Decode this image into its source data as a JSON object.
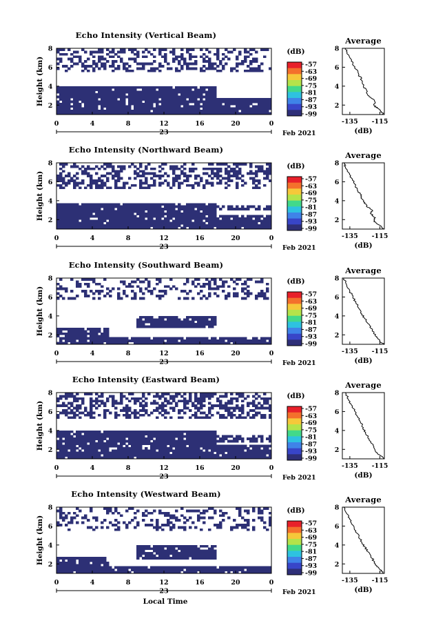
{
  "figure": {
    "x_label": "Local Time",
    "date_label": "Feb 2021",
    "day_label": "23",
    "colorbar_unit": "(dB)",
    "colorbar_ticks": [
      "-57",
      "-63",
      "-69",
      "-75",
      "-81",
      "-87",
      "-93",
      "-99"
    ],
    "colorbar_colors": [
      "#e8202a",
      "#f4702c",
      "#f6c83a",
      "#b4e34a",
      "#42d98a",
      "#2ec2e0",
      "#3f83e8",
      "#3845c8",
      "#2e2f78"
    ],
    "average_title": "Average",
    "average_xlabel": "(dB)",
    "data_color": "#2d3075",
    "panel_titles": [
      "Echo Intensity (Vertical Beam)",
      "Echo Intensity (Northward Beam)",
      "Echo Intensity (Southward Beam)",
      "Echo Intensity (Eastward Beam)",
      "Echo Intensity (Westward Beam)"
    ]
  },
  "chart_data": [
    {
      "type": "heatmap",
      "title": "Echo Intensity (Vertical Beam)",
      "ylabel": "Height (km)",
      "xlabel": "",
      "x_ticks": [
        "0",
        "4",
        "8",
        "12",
        "16",
        "20",
        "0"
      ],
      "y_ticks": [
        "2",
        "4",
        "6",
        "8"
      ],
      "xlim": [
        0,
        24
      ],
      "ylim": [
        1,
        8
      ],
      "colorbar": {
        "label": "(dB)",
        "min": -99,
        "max": -57
      },
      "echo_bands": [
        {
          "y": [
            1.0,
            1.7
          ],
          "x": [
            0,
            24
          ],
          "density": 0.97
        },
        {
          "y": [
            1.7,
            2.8
          ],
          "x": [
            0,
            24
          ],
          "density": 0.9
        },
        {
          "y": [
            2.8,
            3.3
          ],
          "x": [
            0,
            18
          ],
          "density": 0.95
        },
        {
          "y": [
            3.3,
            4.0
          ],
          "x": [
            0,
            18
          ],
          "density": 0.96
        },
        {
          "y": [
            5.5,
            8.0
          ],
          "x": [
            0,
            24
          ],
          "density": 0.38
        }
      ],
      "average_profile": {
        "title": "Average",
        "xlabel": "(dB)",
        "x_ticks": [
          "-135",
          "-115"
        ],
        "y_ticks": [
          "2",
          "4",
          "6",
          "8"
        ],
        "xlim": [
          -140,
          -112
        ],
        "ylim": [
          1,
          8
        ],
        "points": [
          [
            -112.5,
            1.0
          ],
          [
            -114,
            1.3
          ],
          [
            -117,
            1.7
          ],
          [
            -119,
            2.0
          ],
          [
            -118.5,
            2.4
          ],
          [
            -121,
            2.8
          ],
          [
            -123.5,
            3.2
          ],
          [
            -124,
            3.6
          ],
          [
            -126,
            4.0
          ],
          [
            -127,
            4.6
          ],
          [
            -129,
            5.2
          ],
          [
            -131,
            5.8
          ],
          [
            -133,
            6.4
          ],
          [
            -135,
            7.0
          ],
          [
            -137,
            7.5
          ],
          [
            -138,
            8.0
          ]
        ]
      }
    },
    {
      "type": "heatmap",
      "title": "Echo Intensity (Northward Beam)",
      "ylabel": "Height (km)",
      "xlabel": "",
      "x_ticks": [
        "0",
        "4",
        "8",
        "12",
        "16",
        "20",
        "0"
      ],
      "y_ticks": [
        "2",
        "4",
        "6",
        "8"
      ],
      "xlim": [
        0,
        24
      ],
      "ylim": [
        1,
        8
      ],
      "colorbar": {
        "label": "(dB)",
        "min": -99,
        "max": -57
      },
      "echo_bands": [
        {
          "y": [
            1.0,
            1.7
          ],
          "x": [
            0,
            24
          ],
          "density": 0.97
        },
        {
          "y": [
            1.7,
            2.6
          ],
          "x": [
            0,
            24
          ],
          "density": 0.88
        },
        {
          "y": [
            2.6,
            3.8
          ],
          "x": [
            0,
            18
          ],
          "density": 0.95
        },
        {
          "y": [
            2.9,
            3.5
          ],
          "x": [
            18,
            24
          ],
          "density": 0.55
        },
        {
          "y": [
            5.3,
            8.0
          ],
          "x": [
            0,
            24
          ],
          "density": 0.4
        }
      ],
      "average_profile": {
        "title": "Average",
        "xlabel": "(dB)",
        "x_ticks": [
          "-135",
          "-115"
        ],
        "y_ticks": [
          "2",
          "4",
          "6",
          "8"
        ],
        "xlim": [
          -140,
          -112
        ],
        "ylim": [
          1,
          8
        ],
        "points": [
          [
            -112.5,
            1.0
          ],
          [
            -115,
            1.4
          ],
          [
            -119,
            1.8
          ],
          [
            -118,
            2.2
          ],
          [
            -121,
            2.6
          ],
          [
            -120,
            3.0
          ],
          [
            -124,
            3.4
          ],
          [
            -125,
            3.8
          ],
          [
            -127,
            4.2
          ],
          [
            -128,
            4.7
          ],
          [
            -130,
            5.2
          ],
          [
            -132,
            5.8
          ],
          [
            -134,
            6.4
          ],
          [
            -136,
            7.0
          ],
          [
            -138,
            7.6
          ],
          [
            -139,
            8.0
          ]
        ]
      }
    },
    {
      "type": "heatmap",
      "title": "Echo Intensity (Southward Beam)",
      "ylabel": "Height (km)",
      "xlabel": "",
      "x_ticks": [
        "0",
        "4",
        "8",
        "12",
        "16",
        "20",
        "0"
      ],
      "y_ticks": [
        "2",
        "4",
        "6",
        "8"
      ],
      "xlim": [
        0,
        24
      ],
      "ylim": [
        1,
        8
      ],
      "colorbar": {
        "label": "(dB)",
        "min": -99,
        "max": -57
      },
      "echo_bands": [
        {
          "y": [
            1.0,
            1.8
          ],
          "x": [
            0,
            24
          ],
          "density": 0.93
        },
        {
          "y": [
            1.8,
            2.8
          ],
          "x": [
            0,
            6
          ],
          "density": 0.82
        },
        {
          "y": [
            2.8,
            4.0
          ],
          "x": [
            9,
            18
          ],
          "density": 0.9
        },
        {
          "y": [
            5.8,
            8.0
          ],
          "x": [
            0,
            24
          ],
          "density": 0.28
        }
      ],
      "average_profile": {
        "title": "Average",
        "xlabel": "(dB)",
        "x_ticks": [
          "-135",
          "-115"
        ],
        "y_ticks": [
          "2",
          "4",
          "6",
          "8"
        ],
        "xlim": [
          -140,
          -112
        ],
        "ylim": [
          1,
          8
        ],
        "points": [
          [
            -112.5,
            1.0
          ],
          [
            -115,
            1.4
          ],
          [
            -117,
            1.8
          ],
          [
            -119,
            2.2
          ],
          [
            -121,
            2.7
          ],
          [
            -123,
            3.2
          ],
          [
            -125,
            3.7
          ],
          [
            -127,
            4.2
          ],
          [
            -129,
            4.8
          ],
          [
            -131,
            5.4
          ],
          [
            -133,
            6.0
          ],
          [
            -135,
            6.6
          ],
          [
            -137,
            7.2
          ],
          [
            -139,
            8.0
          ]
        ]
      }
    },
    {
      "type": "heatmap",
      "title": "Echo Intensity (Eastward Beam)",
      "ylabel": "Height (km)",
      "xlabel": "",
      "x_ticks": [
        "0",
        "4",
        "8",
        "12",
        "16",
        "20",
        "0"
      ],
      "y_ticks": [
        "2",
        "4",
        "6",
        "8"
      ],
      "xlim": [
        0,
        24
      ],
      "ylim": [
        1,
        8
      ],
      "colorbar": {
        "label": "(dB)",
        "min": -99,
        "max": -57
      },
      "echo_bands": [
        {
          "y": [
            1.0,
            1.7
          ],
          "x": [
            0,
            24
          ],
          "density": 0.96
        },
        {
          "y": [
            1.7,
            2.6
          ],
          "x": [
            0,
            24
          ],
          "density": 0.86
        },
        {
          "y": [
            2.6,
            3.9
          ],
          "x": [
            0,
            18
          ],
          "density": 0.94
        },
        {
          "y": [
            2.8,
            3.6
          ],
          "x": [
            18,
            24
          ],
          "density": 0.55
        },
        {
          "y": [
            5.2,
            8.0
          ],
          "x": [
            0,
            24
          ],
          "density": 0.45
        }
      ],
      "average_profile": {
        "title": "Average",
        "xlabel": "(dB)",
        "x_ticks": [
          "-135",
          "-115"
        ],
        "y_ticks": [
          "2",
          "4",
          "6",
          "8"
        ],
        "xlim": [
          -140,
          -112
        ],
        "ylim": [
          1,
          8
        ],
        "points": [
          [
            -112.5,
            1.0
          ],
          [
            -115,
            1.4
          ],
          [
            -118,
            1.8
          ],
          [
            -119,
            2.3
          ],
          [
            -121,
            2.8
          ],
          [
            -123,
            3.3
          ],
          [
            -124.5,
            3.8
          ],
          [
            -126,
            4.3
          ],
          [
            -128,
            4.9
          ],
          [
            -130,
            5.5
          ],
          [
            -132,
            6.1
          ],
          [
            -134,
            6.7
          ],
          [
            -136,
            7.3
          ],
          [
            -138,
            8.0
          ]
        ]
      }
    },
    {
      "type": "heatmap",
      "title": "Echo Intensity (Westward Beam)",
      "ylabel": "Height (km)",
      "xlabel": "Local Time",
      "x_ticks": [
        "0",
        "4",
        "8",
        "12",
        "16",
        "20",
        "0"
      ],
      "y_ticks": [
        "2",
        "4",
        "6",
        "8"
      ],
      "xlim": [
        0,
        24
      ],
      "ylim": [
        1,
        8
      ],
      "colorbar": {
        "label": "(dB)",
        "min": -99,
        "max": -57
      },
      "echo_bands": [
        {
          "y": [
            1.0,
            1.8
          ],
          "x": [
            0,
            24
          ],
          "density": 0.93
        },
        {
          "y": [
            1.8,
            2.8
          ],
          "x": [
            0,
            6
          ],
          "density": 0.82
        },
        {
          "y": [
            2.6,
            3.9
          ],
          "x": [
            9,
            18
          ],
          "density": 0.9
        },
        {
          "y": [
            5.5,
            8.0
          ],
          "x": [
            0,
            24
          ],
          "density": 0.3
        }
      ],
      "average_profile": {
        "title": "Average",
        "xlabel": "(dB)",
        "x_ticks": [
          "-135",
          "-115"
        ],
        "y_ticks": [
          "2",
          "4",
          "6",
          "8"
        ],
        "xlim": [
          -140,
          -112
        ],
        "ylim": [
          1,
          8
        ],
        "points": [
          [
            -112.5,
            1.0
          ],
          [
            -115,
            1.4
          ],
          [
            -117,
            1.8
          ],
          [
            -119,
            2.3
          ],
          [
            -121,
            2.8
          ],
          [
            -123,
            3.3
          ],
          [
            -125,
            3.8
          ],
          [
            -127,
            4.3
          ],
          [
            -129,
            4.9
          ],
          [
            -131,
            5.5
          ],
          [
            -133,
            6.1
          ],
          [
            -135,
            6.7
          ],
          [
            -137,
            7.3
          ],
          [
            -139,
            8.0
          ]
        ]
      }
    }
  ]
}
